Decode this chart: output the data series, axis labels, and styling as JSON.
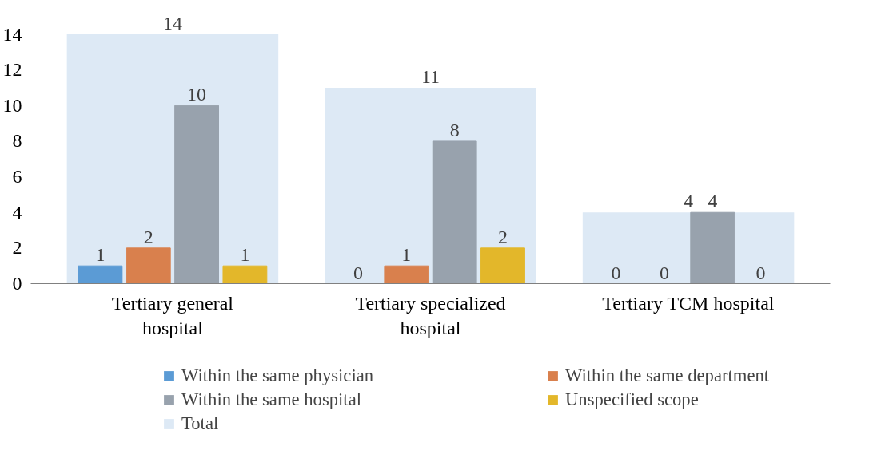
{
  "chart_data": {
    "type": "bar",
    "categories": [
      "Tertiary general hospital",
      "Tertiary specialized hospital",
      "Tertiary TCM hospital"
    ],
    "series": [
      {
        "name": "Total",
        "color": "#dde9f5",
        "values": [
          14,
          11,
          4
        ]
      },
      {
        "name": "Within the same physician",
        "color": "#5b9bd5",
        "values": [
          1,
          0,
          0
        ]
      },
      {
        "name": "Within the same department",
        "color": "#d9804d",
        "values": [
          2,
          1,
          0
        ]
      },
      {
        "name": "Within the same hospital",
        "color": "#98a2ad",
        "values": [
          10,
          8,
          4
        ]
      },
      {
        "name": "Unspecified scope",
        "color": "#e3b72a",
        "values": [
          1,
          2,
          0
        ]
      }
    ],
    "ylim": [
      0,
      14
    ],
    "yticks": [
      0,
      2,
      4,
      6,
      8,
      10,
      12,
      14
    ],
    "grid": false,
    "legend": "bottom",
    "data_labels": true
  }
}
